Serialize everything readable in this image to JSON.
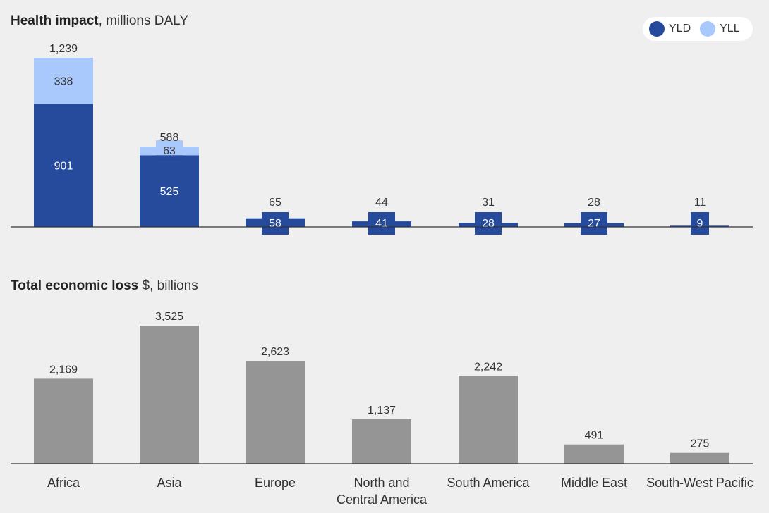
{
  "health": {
    "title_bold": "Health impact",
    "title_rest": ", millions DALY"
  },
  "economic": {
    "title_bold": "Total economic loss",
    "title_rest": " $, billions"
  },
  "legend": [
    {
      "label": "YLD",
      "color": "#264a9c"
    },
    {
      "label": "YLL",
      "color": "#a9c8fb"
    }
  ],
  "chart_data": [
    {
      "type": "bar",
      "stacked": true,
      "title": "Health impact, millions DALY",
      "categories": [
        "Africa",
        "Asia",
        "Europe",
        "North and Central America",
        "South America",
        "Middle East",
        "South-West Pacific"
      ],
      "series": [
        {
          "name": "YLD",
          "values": [
            901,
            525,
            58,
            41,
            28,
            27,
            9
          ],
          "color": "#264a9c"
        },
        {
          "name": "YLL",
          "values": [
            338,
            63,
            7,
            3,
            3,
            1,
            2
          ],
          "color": "#a9c8fb"
        }
      ],
      "yll_labels": [
        "338",
        "63",
        "",
        "",
        "",
        "",
        ""
      ],
      "yld_labels": [
        "901",
        "525",
        "58",
        "41",
        "28",
        "27",
        "9"
      ],
      "totals": [
        "1,239",
        "588",
        "65",
        "44",
        "31",
        "28",
        "11"
      ],
      "ylim": [
        0,
        1239
      ],
      "legend_position": "top-right"
    },
    {
      "type": "bar",
      "title": "Total economic loss $, billions",
      "categories": [
        "Africa",
        "Asia",
        "Europe",
        "North and Central America",
        "South America",
        "Middle East",
        "South-West Pacific"
      ],
      "values": [
        2169,
        3525,
        2623,
        1137,
        2242,
        491,
        275
      ],
      "value_labels": [
        "2,169",
        "3,525",
        "2,623",
        "1,137",
        "2,242",
        "491",
        "275"
      ],
      "color": "#959595",
      "ylim": [
        0,
        3525
      ]
    }
  ],
  "x_labels": [
    [
      "Africa"
    ],
    [
      "Asia"
    ],
    [
      "Europe"
    ],
    [
      "North and",
      "Central America"
    ],
    [
      "South America"
    ],
    [
      "Middle East"
    ],
    [
      "South-West Pacific"
    ]
  ]
}
